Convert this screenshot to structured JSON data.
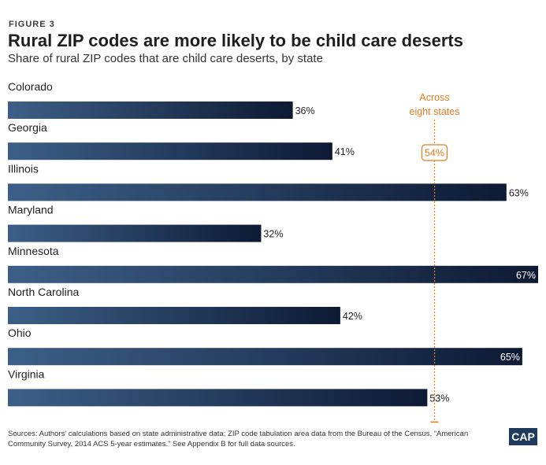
{
  "header": {
    "figure_label": "FIGURE 3",
    "title": "Rural ZIP codes are more likely to be child care deserts",
    "subtitle": "Share of rural ZIP codes that are child care deserts, by state"
  },
  "chart_data": {
    "type": "bar",
    "orientation": "horizontal",
    "categories": [
      "Colorado",
      "Georgia",
      "Illinois",
      "Maryland",
      "Minnesota",
      "North Carolina",
      "Ohio",
      "Virginia"
    ],
    "values": [
      36,
      41,
      63,
      32,
      67,
      42,
      65,
      53
    ],
    "value_labels": [
      "36%",
      "41%",
      "63%",
      "32%",
      "67%",
      "42%",
      "65%",
      "53%"
    ],
    "xlim": [
      0,
      67
    ],
    "reference_line": {
      "value": 54,
      "label": "54%",
      "annotation": "Across eight states"
    },
    "bar_gradient": {
      "start": "#3d5f87",
      "end": "#0d1a33"
    },
    "reference_color": "#e07a1f",
    "grid": false
  },
  "footer": {
    "sources": "Sources: Authors' calculations based on state administrative data; ZIP code tabulation area data from the Bureau of the Census, “American Community Survey, 2014 ACS 5-year estimates.” See Appendix B for full data sources.",
    "logo_text": "CAP"
  }
}
